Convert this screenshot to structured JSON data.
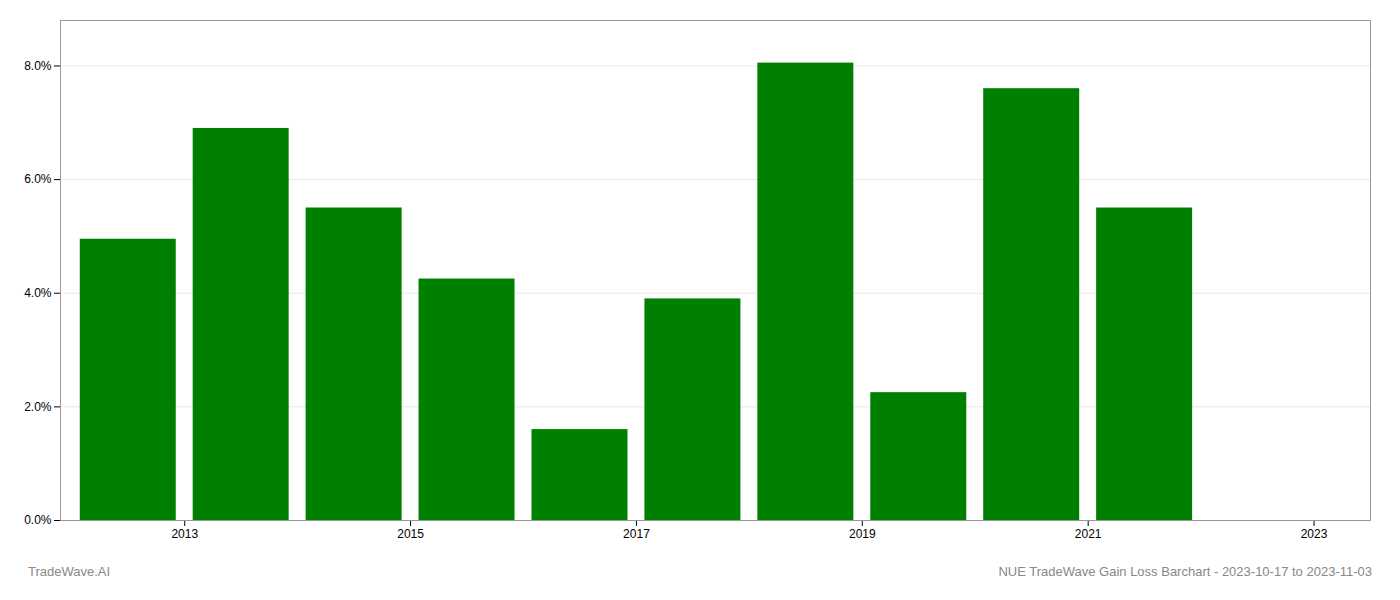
{
  "chart_data": {
    "type": "bar",
    "x": [
      2013,
      2014,
      2015,
      2016,
      2017,
      2018,
      2019,
      2020,
      2021,
      2022
    ],
    "values": [
      0.0495,
      0.069,
      0.055,
      0.0425,
      0.016,
      0.039,
      0.0805,
      0.0225,
      0.076,
      0.055
    ],
    "color": "#008000",
    "xlim": [
      2012.4,
      2024.0
    ],
    "xticks": [
      {
        "value": 2013.5,
        "label": "2013"
      },
      {
        "value": 2015.5,
        "label": "2015"
      },
      {
        "value": 2017.5,
        "label": "2017"
      },
      {
        "value": 2019.5,
        "label": "2019"
      },
      {
        "value": 2021.5,
        "label": "2021"
      },
      {
        "value": 2023.5,
        "label": "2023"
      }
    ],
    "ylim": [
      0.0,
      0.088
    ],
    "yticks": [
      {
        "value": 0.0,
        "label": "0.0%"
      },
      {
        "value": 0.02,
        "label": "2.0%"
      },
      {
        "value": 0.04,
        "label": "4.0%"
      },
      {
        "value": 0.06,
        "label": "6.0%"
      },
      {
        "value": 0.08,
        "label": "8.0%"
      }
    ],
    "grid": true,
    "annotations": [
      "TradeWave.AI",
      "NUE TradeWave Gain Loss Barchart - 2023-10-17 to 2023-11-03"
    ]
  }
}
